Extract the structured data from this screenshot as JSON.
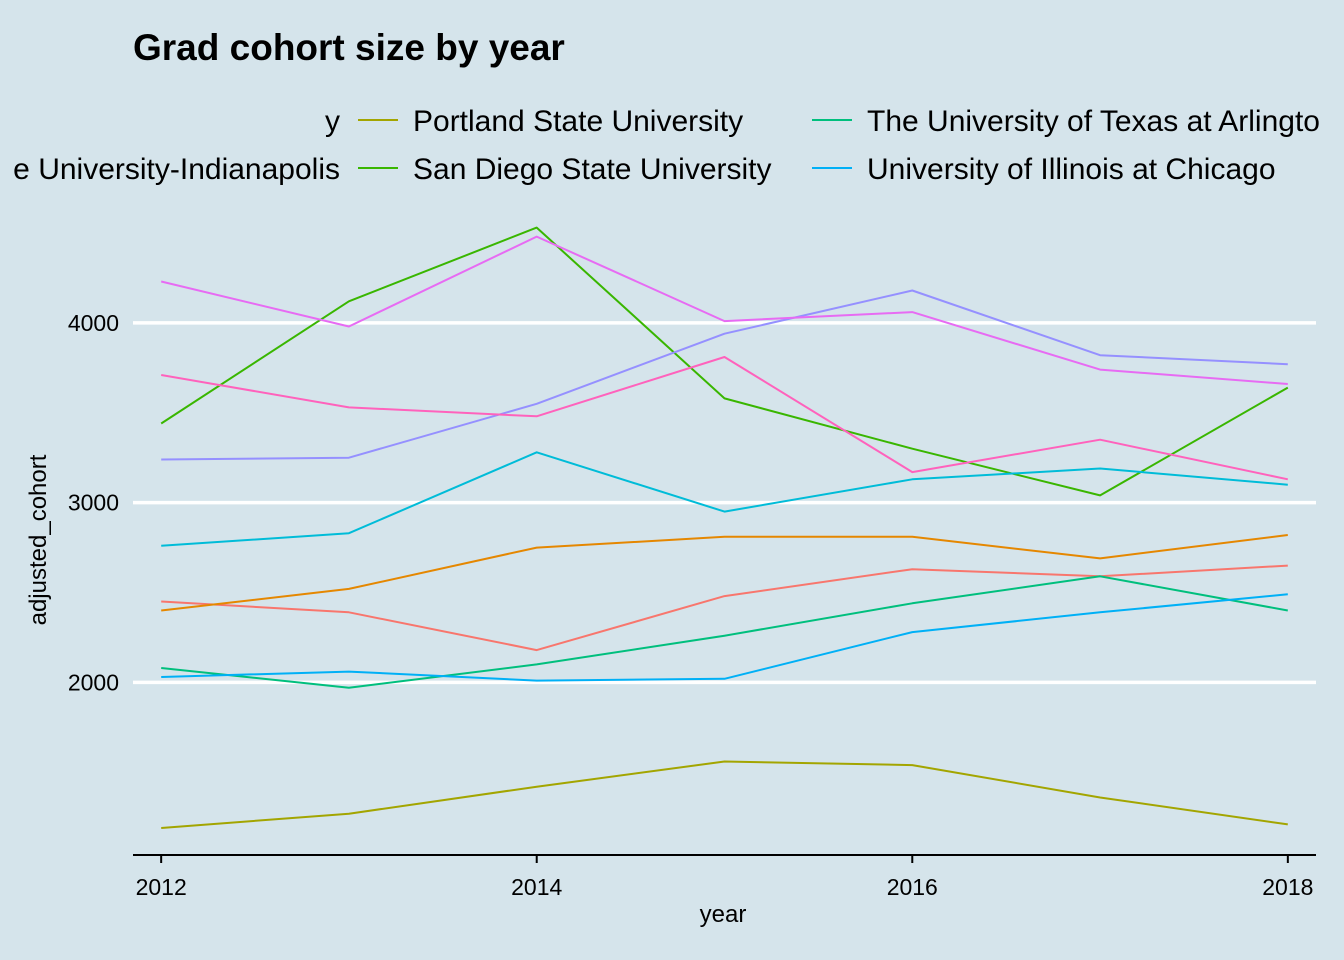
{
  "chart_data": {
    "type": "line",
    "title": "Grad cohort size by year",
    "xlabel": "year",
    "ylabel": "adjusted_cohort",
    "xlim": [
      2011.85,
      2018.15
    ],
    "ylim": [
      1040,
      4600
    ],
    "xticks": [
      2012,
      2014,
      2016,
      2018
    ],
    "yticks": [
      2000,
      3000,
      4000
    ],
    "x": [
      2012,
      2013,
      2014,
      2015,
      2016,
      2017,
      2018
    ],
    "grid": "horizontal major only",
    "legend_position": "top",
    "legend_visible": [
      {
        "label": "y",
        "color": "#e58700",
        "row": 0,
        "col": 0
      },
      {
        "label": "e University-Indianapolis",
        "color": "#e76bf3",
        "row": 1,
        "col": 0
      },
      {
        "label": "Portland State University",
        "color": "#a3a500",
        "row": 0,
        "col": 1
      },
      {
        "label": "San Diego State University",
        "color": "#39b600",
        "row": 1,
        "col": 1
      },
      {
        "label": "The University of Texas at Arlingto",
        "color": "#00bf7d",
        "row": 0,
        "col": 2
      },
      {
        "label": "University of Illinois at Chicago",
        "color": "#00b0f6",
        "row": 1,
        "col": 2
      }
    ],
    "series": [
      {
        "color": "#f8766d",
        "values": [
          2450,
          2390,
          2180,
          2480,
          2630,
          2590,
          2650
        ]
      },
      {
        "color": "#e58700",
        "values": [
          2400,
          2520,
          2750,
          2810,
          2810,
          2690,
          2820
        ]
      },
      {
        "name": "Portland State University",
        "color": "#a3a500",
        "values": [
          1190,
          1270,
          1420,
          1560,
          1540,
          1360,
          1210
        ]
      },
      {
        "name": "San Diego State University",
        "color": "#39b600",
        "values": [
          3440,
          4120,
          4530,
          3580,
          3300,
          3040,
          3640
        ]
      },
      {
        "name": "The University of Texas at Arlingto",
        "color": "#00bf7d",
        "values": [
          2080,
          1970,
          2100,
          2260,
          2440,
          2590,
          2400
        ]
      },
      {
        "color": "#00bcd8",
        "values": [
          2760,
          2830,
          3280,
          2950,
          3130,
          3190,
          3100
        ]
      },
      {
        "name": "University of Illinois at Chicago",
        "color": "#00b0f6",
        "values": [
          2030,
          2060,
          2010,
          2020,
          2280,
          2390,
          2490
        ]
      },
      {
        "color": "#9590ff",
        "values": [
          3240,
          3250,
          3550,
          3940,
          4180,
          3820,
          3770
        ]
      },
      {
        "name": "e University-Indianapolis",
        "color": "#e76bf3",
        "values": [
          4230,
          3980,
          4480,
          4010,
          4060,
          3740,
          3660
        ]
      },
      {
        "color": "#ff62bc",
        "values": [
          3710,
          3530,
          3480,
          3810,
          3170,
          3350,
          3130
        ]
      }
    ]
  }
}
